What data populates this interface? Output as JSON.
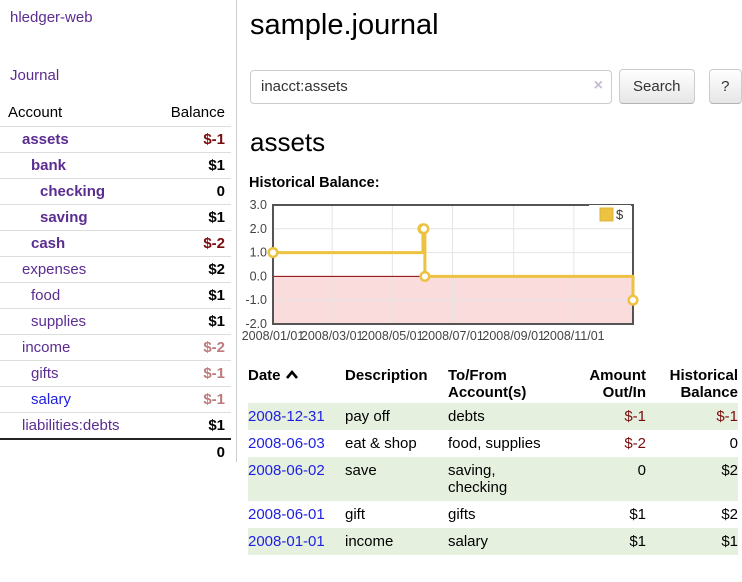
{
  "app": {
    "title": "hledger-web"
  },
  "sidebar": {
    "journal_label": "Journal",
    "accounts_table": {
      "headers": {
        "account": "Account",
        "balance": "Balance"
      },
      "rows": [
        {
          "name": "assets",
          "depth": 1,
          "bold": true,
          "link_color": "purple",
          "balance": "$-1",
          "balance_style": "negative"
        },
        {
          "name": "bank",
          "depth": 2,
          "bold": true,
          "link_color": "purple",
          "balance": "$1",
          "balance_style": "normal"
        },
        {
          "name": "checking",
          "depth": 3,
          "bold": true,
          "link_color": "purple",
          "balance": "0",
          "balance_style": "normal"
        },
        {
          "name": "saving",
          "depth": 3,
          "bold": true,
          "link_color": "purple",
          "balance": "$1",
          "balance_style": "normal"
        },
        {
          "name": "cash",
          "depth": 2,
          "bold": true,
          "link_color": "purple",
          "balance": "$-2",
          "balance_style": "negative"
        },
        {
          "name": "expenses",
          "depth": 1,
          "bold": false,
          "link_color": "purple",
          "balance": "$2",
          "balance_style": "normal"
        },
        {
          "name": "food",
          "depth": 2,
          "bold": false,
          "link_color": "purple",
          "balance": "$1",
          "balance_style": "normal"
        },
        {
          "name": "supplies",
          "depth": 2,
          "bold": false,
          "link_color": "purple",
          "balance": "$1",
          "balance_style": "normal"
        },
        {
          "name": "income",
          "depth": 1,
          "bold": false,
          "link_color": "purple",
          "balance": "$-2",
          "balance_style": "negative-dim"
        },
        {
          "name": "gifts",
          "depth": 2,
          "bold": false,
          "link_color": "purple",
          "balance": "$-1",
          "balance_style": "negative-dim"
        },
        {
          "name": "salary",
          "depth": 2,
          "bold": false,
          "link_color": "blue",
          "balance": "$-1",
          "balance_style": "negative-dim"
        },
        {
          "name": "liabilities:debts",
          "depth": 1,
          "bold": false,
          "link_color": "purple",
          "balance": "$1",
          "balance_style": "normal"
        }
      ],
      "total": "0"
    }
  },
  "header": {
    "title": "sample.journal"
  },
  "search": {
    "value": "inacct:assets",
    "clear_icon": "×",
    "button_label": "Search",
    "help_label": "?"
  },
  "account_page": {
    "heading": "assets",
    "chart_label": "Historical Balance:"
  },
  "chart_data": {
    "type": "line",
    "step": true,
    "title": "Historical Balance:",
    "x_range": [
      "2008-01-01",
      "2008-12-31"
    ],
    "y_range": [
      -2,
      3
    ],
    "y_ticks": [
      "3.0",
      "2.0",
      "1.0",
      "0.0",
      "-1.0",
      "-2.0"
    ],
    "x_ticks": [
      "2008/01/01",
      "2008/03/01",
      "2008/05/01",
      "2008/07/01",
      "2008/09/01",
      "2008/11/01"
    ],
    "series": [
      {
        "name": "$",
        "color": "#edc240",
        "points": [
          {
            "x": "2008-01-01",
            "y": 1
          },
          {
            "x": "2008-06-01",
            "y": 2
          },
          {
            "x": "2008-06-02",
            "y": 2
          },
          {
            "x": "2008-06-03",
            "y": 0
          },
          {
            "x": "2008-12-31",
            "y": -1
          }
        ]
      }
    ],
    "legend": {
      "label": "$",
      "position": "top-right"
    },
    "grid": true,
    "grid_color": "#e4e4e4",
    "border_color": "#545454",
    "zero_line_color": "#8b0000",
    "negative_region_color": "#fbdcdc",
    "tick_label_color": "#444444",
    "xlabel": "",
    "ylabel": ""
  },
  "register_table": {
    "headers": {
      "date": "Date",
      "description": "Description",
      "tofrom": [
        "To/From",
        "Account(s)"
      ],
      "amount": [
        "Amount",
        "Out/In"
      ],
      "balance": [
        "Historical",
        "Balance"
      ]
    },
    "sort": {
      "column": "date",
      "direction": "asc"
    },
    "rows": [
      {
        "date": "2008-12-31",
        "description": "pay off",
        "accounts": "debts",
        "amount": "$-1",
        "amount_negative": true,
        "balance": "$-1",
        "balance_negative": true
      },
      {
        "date": "2008-06-03",
        "description": "eat & shop",
        "accounts": "food, supplies",
        "amount": "$-2",
        "amount_negative": true,
        "balance": "0",
        "balance_negative": false
      },
      {
        "date": "2008-06-02",
        "description": "save",
        "accounts": "saving, checking",
        "amount": "0",
        "amount_negative": false,
        "balance": "$2",
        "balance_negative": false
      },
      {
        "date": "2008-06-01",
        "description": "gift",
        "accounts": "gifts",
        "amount": "$1",
        "amount_negative": false,
        "balance": "$2",
        "balance_negative": false
      },
      {
        "date": "2008-01-01",
        "description": "income",
        "accounts": "salary",
        "amount": "$1",
        "amount_negative": false,
        "balance": "$1",
        "balance_negative": false
      }
    ]
  },
  "colors": {
    "link_purple": "#5b2d91",
    "link_blue": "#1f1fe0",
    "negative_dark": "#7a0c0c",
    "negative_dim": "#bf7b7b",
    "row_stripe_green": "#e5f0df"
  }
}
